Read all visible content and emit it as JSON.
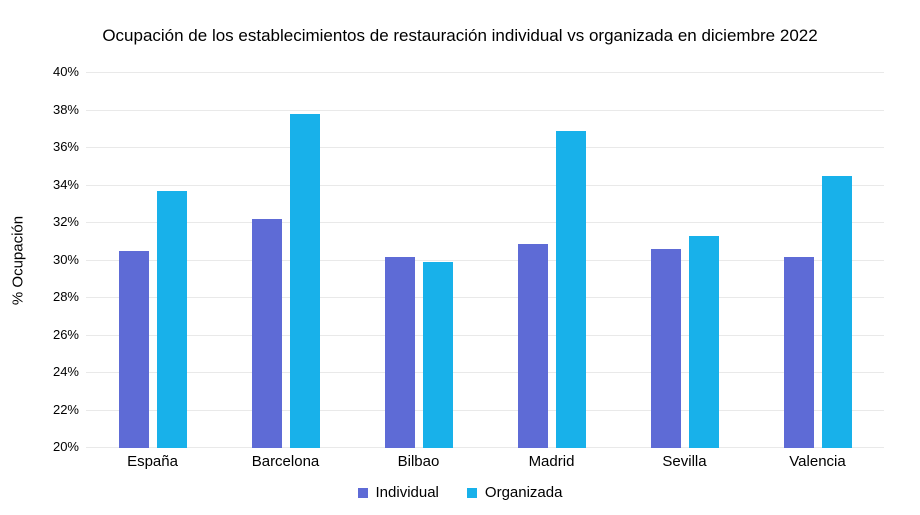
{
  "chart_data": {
    "type": "bar",
    "title": "Ocupación de los establecimientos de restauración individual vs organizada en diciembre 2022",
    "ylabel": "% Ocupación",
    "xlabel": "",
    "categories": [
      "España",
      "Barcelona",
      "Bilbao",
      "Madrid",
      "Sevilla",
      "Valencia"
    ],
    "series": [
      {
        "name": "Individual",
        "color": "#5e6bd6",
        "values": [
          30.5,
          32.2,
          30.2,
          30.9,
          30.6,
          30.2
        ]
      },
      {
        "name": "Organizada",
        "color": "#18b1ea",
        "values": [
          33.7,
          37.8,
          29.9,
          36.9,
          31.3,
          34.5
        ]
      }
    ],
    "ylim": [
      20,
      40
    ],
    "ytick_step": 2,
    "ytick_suffix": "%",
    "grid": "horizontal",
    "legend_position": "bottom"
  },
  "colors": {
    "background": "#ffffff",
    "gridline": "#e9e9e9",
    "text": "#000000"
  }
}
